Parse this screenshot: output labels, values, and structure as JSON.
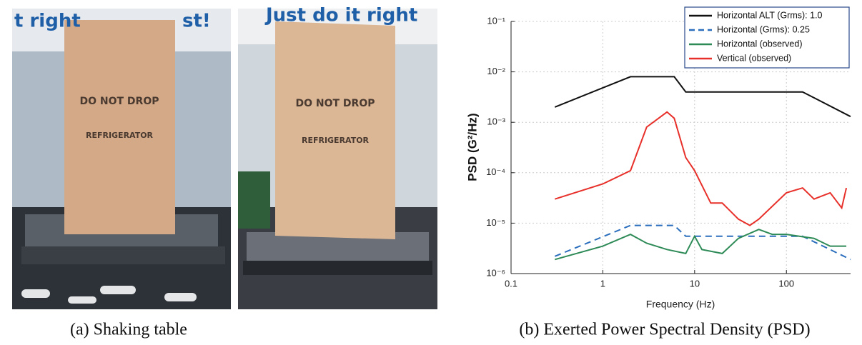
{
  "photos": [
    {
      "signs": [
        "t right",
        "st!"
      ],
      "labels": [
        "DO NOT DROP",
        "REFRIGERATOR"
      ]
    },
    {
      "signs": [
        "Just do it right"
      ],
      "labels": [
        "DO NOT DROP",
        "REFRIGERATOR"
      ]
    }
  ],
  "captions": [
    "(a) Shaking table",
    "(b) Exerted Power Spectral Density (PSD)"
  ],
  "chart_data": {
    "type": "line",
    "xlabel": "Frequency (Hz)",
    "ylabel": "PSD (G²/Hz)",
    "xscale": "log",
    "yscale": "log",
    "grid": true,
    "legend": "upper right",
    "xlim": [
      0.1,
      500
    ],
    "ylim": [
      1e-06,
      0.1
    ],
    "xticks": [
      0.1,
      1,
      10,
      100
    ],
    "yticks": [
      {
        "value": 0.1,
        "label": "10⁻¹"
      },
      {
        "value": 0.01,
        "label": "10⁻²"
      },
      {
        "value": 0.001,
        "label": "10⁻³"
      },
      {
        "value": 0.0001,
        "label": "10⁻⁴"
      },
      {
        "value": 1e-05,
        "label": "10⁻⁵"
      },
      {
        "value": 1e-06,
        "label": "10⁻⁶"
      }
    ],
    "series": [
      {
        "name": "Horizontal ALT (Grms): 1.0",
        "color": "#111111",
        "dash": false,
        "x": [
          0.3,
          2,
          6,
          8,
          150,
          500
        ],
        "values": [
          0.002,
          0.008,
          0.008,
          0.004,
          0.004,
          0.0013
        ]
      },
      {
        "name": "Horizontal (Grms): 0.25",
        "color": "#2a6ebd",
        "dash": true,
        "x": [
          0.3,
          2,
          6,
          8,
          150,
          500
        ],
        "values": [
          2.2e-06,
          9e-06,
          9e-06,
          5.5e-06,
          5.5e-06,
          1.9e-06
        ]
      },
      {
        "name": "Horizontal (observed)",
        "color": "#2e8b57",
        "dash": false,
        "x": [
          0.3,
          1,
          2,
          3,
          5,
          8,
          10,
          12,
          20,
          30,
          50,
          70,
          100,
          200,
          300,
          450
        ],
        "values": [
          1.9e-06,
          3.5e-06,
          6e-06,
          4e-06,
          3e-06,
          2.5e-06,
          5.5e-06,
          3e-06,
          2.5e-06,
          5e-06,
          7.5e-06,
          6e-06,
          6e-06,
          5e-06,
          3.5e-06,
          3.5e-06
        ]
      },
      {
        "name": "Vertical (observed)",
        "color": "#e8302a",
        "dash": false,
        "x": [
          0.3,
          1,
          2,
          3,
          5,
          6,
          8,
          10,
          15,
          20,
          30,
          40,
          50,
          100,
          150,
          200,
          300,
          400,
          450
        ],
        "values": [
          3e-05,
          6e-05,
          0.00011,
          0.0008,
          0.0016,
          0.0012,
          0.0002,
          0.00011,
          2.5e-05,
          2.5e-05,
          1.2e-05,
          9e-06,
          1.2e-05,
          4e-05,
          5e-05,
          3e-05,
          4e-05,
          2e-05,
          5e-05
        ]
      }
    ]
  }
}
